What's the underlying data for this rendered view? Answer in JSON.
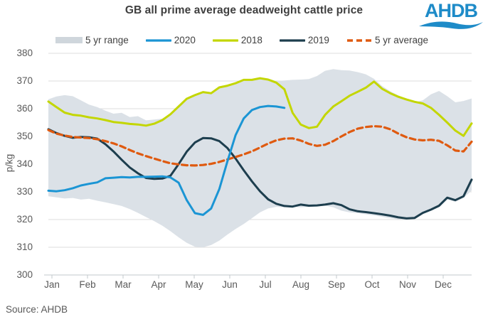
{
  "title": "GB all prime average deadweight cattle price",
  "logo": {
    "text": "AHDB",
    "color": "#1e8bc8"
  },
  "source": "Source: AHDB",
  "colors": {
    "band": "#dbe1e7",
    "band_legend_swatch": "#cfd6dc",
    "line_2020": "#1b95d4",
    "line_2018": "#c3d600",
    "line_2019": "#1d3e4e",
    "line_5yr_avg": "#df5a10",
    "gridline": "#dcdcdc",
    "axis": "#c3c8cc",
    "axis_text": "#595959",
    "title_text": "#3f3f3f"
  },
  "chart_data": {
    "type": "line",
    "title": "GB all prime average deadweight cattle price",
    "xlabel": "",
    "ylabel": "p/kg",
    "ylim": [
      300,
      380
    ],
    "yticks": [
      300,
      310,
      320,
      330,
      340,
      350,
      360,
      370,
      380
    ],
    "grid": "horizontal",
    "legend_position": "top",
    "months": [
      "Jan",
      "Feb",
      "Mar",
      "Apr",
      "May",
      "Jun",
      "Jul",
      "Aug",
      "Sep",
      "Oct",
      "Nov",
      "Dec"
    ],
    "weeks": 53,
    "legend": [
      {
        "label": "5 yr range",
        "swatch": "band"
      },
      {
        "label": "2020",
        "swatch": "line_2020"
      },
      {
        "label": "2018",
        "swatch": "line_2018"
      },
      {
        "label": "2019",
        "swatch": "line_2019"
      },
      {
        "label": "5 yr average",
        "swatch": "dashed_line_5yr_avg"
      }
    ],
    "series": [
      {
        "name": "5 yr range",
        "type": "band",
        "color": "#dbe1e7",
        "upper": [
          363.4,
          364.4,
          364.9,
          364.5,
          363.0,
          361.5,
          360.6,
          359.3,
          358.2,
          358.5,
          357.0,
          357.3,
          355.8,
          356.1,
          356.4,
          358.2,
          360.9,
          363.7,
          365.1,
          366.2,
          366.0,
          367.8,
          368.5,
          369.4,
          370.6,
          370.7,
          371.2,
          370.8,
          370.0,
          370.2,
          370.4,
          370.5,
          370.7,
          371.8,
          373.7,
          374.3,
          373.9,
          373.8,
          373.2,
          372.4,
          370.8,
          368.2,
          366.3,
          364.8,
          363.5,
          362.3,
          363.0,
          365.2,
          366.4,
          364.5,
          362.3,
          362.8,
          363.7
        ],
        "lower": [
          328.4,
          328.0,
          327.6,
          327.8,
          327.2,
          327.5,
          326.8,
          326.2,
          325.6,
          324.9,
          323.8,
          322.4,
          320.9,
          319.4,
          317.8,
          315.8,
          313.6,
          311.6,
          310.2,
          310.0,
          310.8,
          312.4,
          314.6,
          316.6,
          318.4,
          320.5,
          322.6,
          324.0,
          324.6,
          324.4,
          324.6,
          324.4,
          324.6,
          324.8,
          325.0,
          324.4,
          323.2,
          322.6,
          322.3,
          321.9,
          321.5,
          321.0,
          320.5,
          320.1,
          320.2,
          320.2,
          322.0,
          323.2,
          324.4,
          327.2,
          326.4,
          327.8,
          330.5
        ]
      },
      {
        "name": "2018",
        "type": "line",
        "color": "#c3d600",
        "width": 3,
        "values": [
          362.6,
          360.6,
          358.6,
          357.8,
          357.5,
          356.9,
          356.5,
          355.9,
          355.2,
          354.9,
          354.5,
          354.3,
          353.9,
          354.6,
          355.9,
          358.0,
          360.8,
          363.6,
          364.9,
          366.0,
          365.6,
          367.7,
          368.3,
          369.2,
          370.4,
          370.4,
          371.0,
          370.5,
          369.4,
          367.0,
          358.5,
          354.3,
          353.0,
          353.5,
          357.8,
          360.8,
          362.7,
          364.7,
          366.1,
          367.6,
          369.8,
          367.2,
          365.6,
          364.3,
          363.3,
          362.5,
          361.9,
          360.3,
          357.8,
          355.0,
          352.1,
          350.2,
          354.7
        ]
      },
      {
        "name": "2019",
        "type": "line",
        "color": "#1d3e4e",
        "width": 3,
        "values": [
          352.6,
          351.2,
          350.2,
          349.5,
          349.8,
          349.7,
          349.2,
          347.2,
          344.6,
          341.6,
          338.8,
          336.7,
          335.0,
          334.7,
          334.8,
          335.8,
          340.0,
          344.5,
          347.8,
          349.4,
          349.3,
          348.3,
          345.8,
          342.0,
          337.8,
          333.8,
          330.2,
          327.3,
          325.7,
          324.9,
          324.7,
          325.4,
          325.0,
          325.1,
          325.4,
          325.9,
          325.2,
          323.7,
          323.0,
          322.7,
          322.3,
          321.9,
          321.4,
          320.8,
          320.4,
          320.6,
          322.4,
          323.6,
          325.0,
          327.9,
          327.0,
          328.4,
          334.4
        ]
      },
      {
        "name": "5 yr average",
        "type": "line",
        "color": "#df5a10",
        "width": 3.2,
        "dashed": true,
        "values": [
          352.3,
          351.0,
          350.3,
          349.8,
          349.6,
          349.4,
          349.0,
          348.3,
          347.5,
          346.4,
          345.1,
          343.9,
          342.9,
          342.0,
          341.1,
          340.3,
          339.9,
          339.6,
          339.5,
          339.7,
          340.1,
          340.8,
          341.7,
          342.6,
          343.5,
          344.6,
          346.0,
          347.4,
          348.6,
          349.2,
          349.3,
          348.5,
          347.3,
          346.6,
          347.0,
          348.3,
          350.0,
          351.6,
          352.8,
          353.4,
          353.7,
          353.5,
          352.6,
          351.0,
          349.7,
          348.9,
          348.6,
          348.8,
          348.4,
          346.8,
          344.9,
          344.6,
          348.1
        ]
      },
      {
        "name": "2020",
        "type": "line",
        "color": "#1b95d4",
        "width": 3,
        "values": [
          330.4,
          330.2,
          330.6,
          331.3,
          332.3,
          332.9,
          333.4,
          334.9,
          335.1,
          335.3,
          335.2,
          335.4,
          335.4,
          335.5,
          335.6,
          335.2,
          333.3,
          327.0,
          322.3,
          321.7,
          324.0,
          331.0,
          341.0,
          350.5,
          356.5,
          359.5,
          360.6,
          361.0,
          360.8,
          360.3
        ]
      }
    ]
  }
}
